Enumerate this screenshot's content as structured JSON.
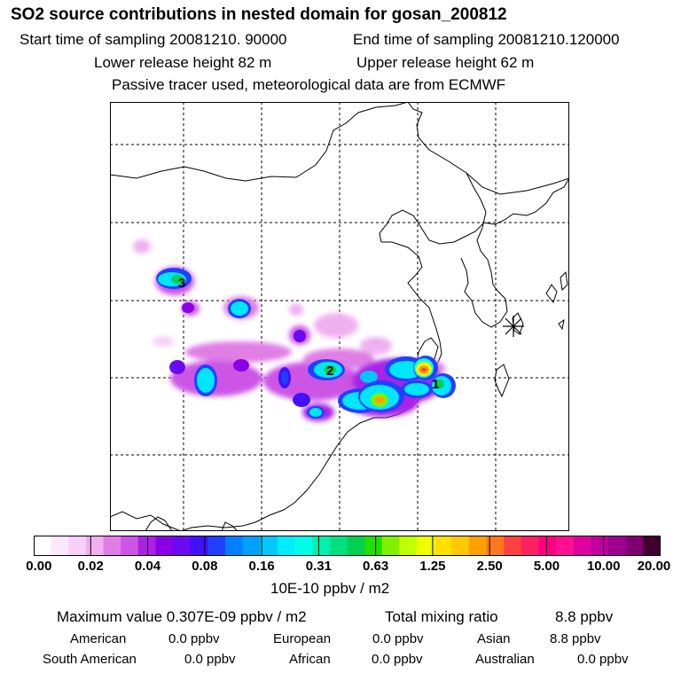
{
  "header": {
    "title": "SO2 source contributions in nested domain for gosan_200812",
    "start_sampling": "Start time of sampling 20081210. 90000",
    "end_sampling": "End time of sampling 20081210.120000",
    "lower_release": "Lower release height   82 m",
    "upper_release": "Upper release height   62 m",
    "tracer_note": "Passive tracer used, meteorological data are from ECMWF"
  },
  "map": {
    "source_labels": [
      "3",
      "2",
      "1"
    ]
  },
  "colorbar": {
    "tick_labels": [
      "0.00",
      "0.02",
      "0.04",
      "0.08",
      "0.16",
      "0.31",
      "0.63",
      "1.25",
      "2.50",
      "5.00",
      "10.00",
      "20.00"
    ],
    "colors": [
      "#ffffff",
      "#fbe8fb",
      "#f6d0f6",
      "#f0b0f0",
      "#e07ee6",
      "#cc55e6",
      "#aa22e6",
      "#8a00e6",
      "#6a0af0",
      "#4010ff",
      "#2040ff",
      "#0080ff",
      "#00a0ff",
      "#00c8ff",
      "#00ecff",
      "#00ffe6",
      "#00f0b0",
      "#00e080",
      "#00d050",
      "#20e000",
      "#80f000",
      "#c0ff00",
      "#f0ff00",
      "#ffe000",
      "#ffc800",
      "#ffa000",
      "#ff7820",
      "#ff4040",
      "#ff2060",
      "#ff0080",
      "#ff1090",
      "#e000a0",
      "#c000a0",
      "#a00090",
      "#800070",
      "#400030"
    ],
    "units": "10E-10 ppbv / m2"
  },
  "summary": {
    "max_value": "Maximum value  0.307E-09 ppbv / m2",
    "total_label": "Total mixing ratio",
    "total_value": "8.8 ppbv",
    "regions": [
      {
        "name": "American",
        "value": "0.0 ppbv"
      },
      {
        "name": "European",
        "value": "0.0 ppbv"
      },
      {
        "name": "Asian",
        "value": "8.8 ppbv"
      },
      {
        "name": "South American",
        "value": "0.0 ppbv"
      },
      {
        "name": "African",
        "value": "0.0 ppbv"
      },
      {
        "name": "Australian",
        "value": "0.0 ppbv"
      }
    ]
  }
}
